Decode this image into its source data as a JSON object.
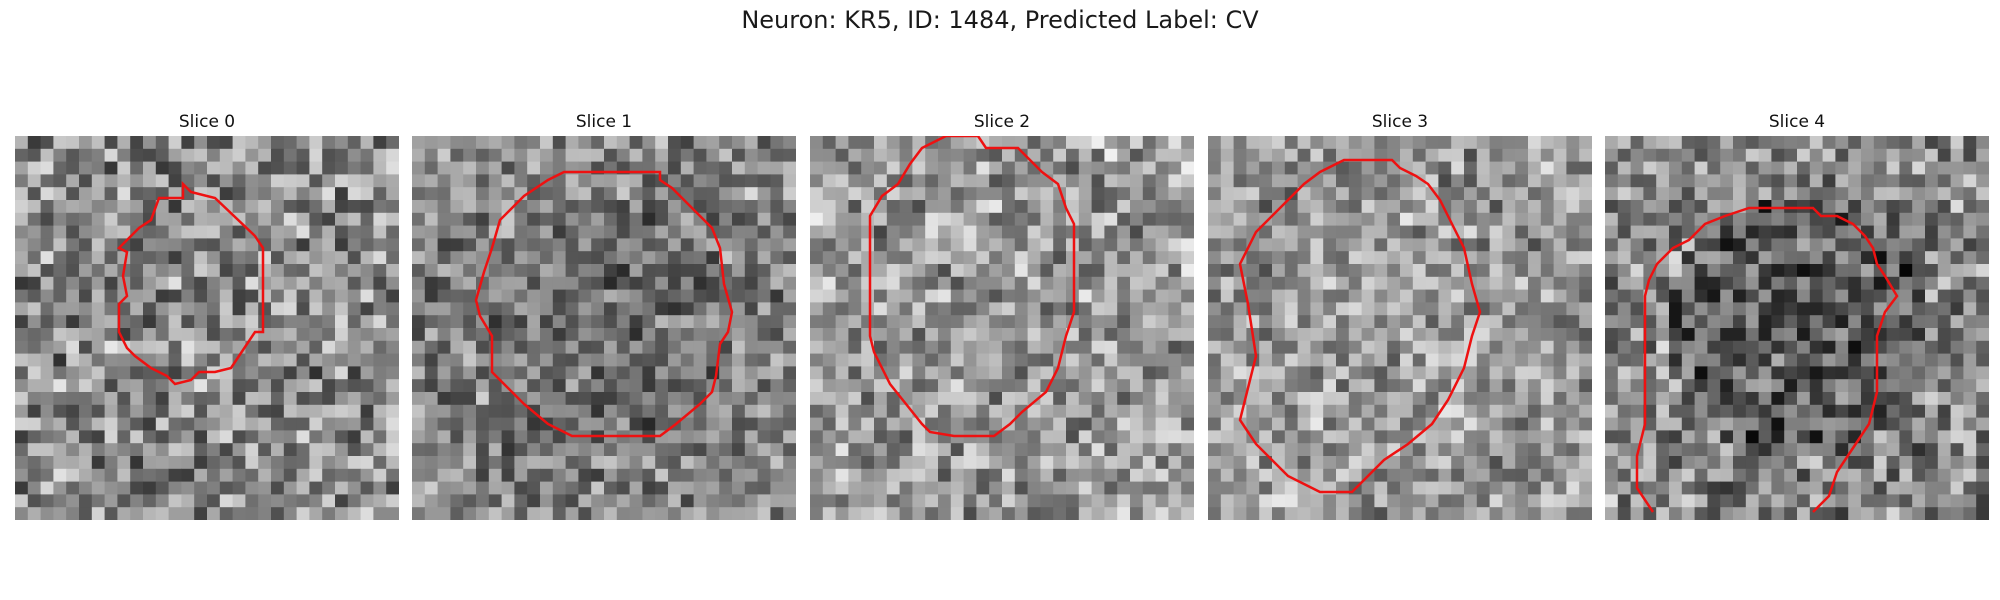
{
  "figure": {
    "title": "Neuron: KR5, ID: 1484, Predicted Label: CV"
  },
  "panels": [
    {
      "title": "Slice 0",
      "seed": 11,
      "bias": 0.58,
      "center_bias": -0.04,
      "contrast": 0.3
    },
    {
      "title": "Slice 1",
      "seed": 27,
      "bias": 0.55,
      "center_bias": -0.1,
      "contrast": 0.24
    },
    {
      "title": "Slice 2",
      "seed": 43,
      "bias": 0.63,
      "center_bias": -0.03,
      "contrast": 0.26
    },
    {
      "title": "Slice 3",
      "seed": 59,
      "bias": 0.62,
      "center_bias": 0.0,
      "contrast": 0.24
    },
    {
      "title": "Slice 4",
      "seed": 71,
      "bias": 0.56,
      "center_bias": -0.2,
      "contrast": 0.28
    }
  ],
  "colors": {
    "contour": "#ee1111"
  }
}
